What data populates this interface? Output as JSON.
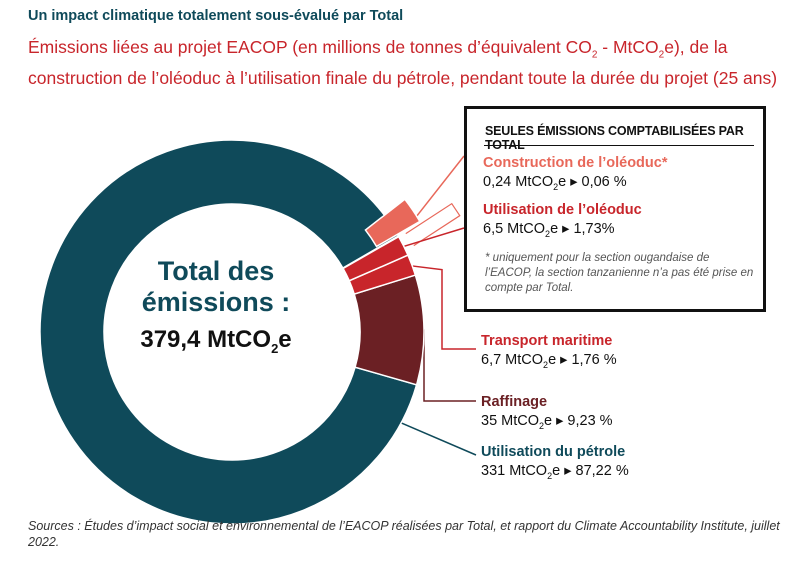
{
  "header": {
    "kicker": "Un impact climatique totalement sous-évalué par Total",
    "subtitle_part1": "Émissions liées au projet EACOP (en millions de tonnes d’équivalent CO",
    "subtitle_sub1": "2",
    "subtitle_part2": " - MtCO",
    "subtitle_sub2": "2",
    "subtitle_part3": "e), de la construction de l’oléoduc à l’utilisation finale du pétrole, pendant toute la durée du projet (25 ans)"
  },
  "center": {
    "title_line1": "Total des",
    "title_line2": "émissions :",
    "value_main": "379,4 MtCO",
    "value_sub": "2",
    "value_suffix": "e"
  },
  "box": {
    "title": "SEULES ÉMISSIONS COMPTABILISÉES PAR TOTAL",
    "note": "* uniquement pour la section ougandaise de l’EACOP, la section tanzanienne n’a pas été prise en compte par Total."
  },
  "labels": {
    "construction": {
      "name": "Construction de l’oléoduc*",
      "val_pre": "0,24 MtCO",
      "val_sub": "2",
      "val_post": "e ▸ 0,06 %"
    },
    "utilisation_oleoduc": {
      "name": "Utilisation de l’oléoduc",
      "val_pre": "6,5 MtCO",
      "val_sub": "2",
      "val_post": "e ▸ 1,73%"
    },
    "transport": {
      "name": "Transport maritime",
      "val_pre": "6,7 MtCO",
      "val_sub": "2",
      "val_post": "e ▸ 1,76 %"
    },
    "raffinage": {
      "name": "Raffinage",
      "val_pre": "35 MtCO",
      "val_sub": "2",
      "val_post": "e ▸ 9,23 %"
    },
    "utilisation_petrole": {
      "name": "Utilisation du pétrole",
      "val_pre": "331 MtCO",
      "val_sub": "2",
      "val_post": "e ▸ 87,22 %"
    }
  },
  "source": "Sources : Études d’impact social et environnemental de l’EACOP réalisées par Total, et rapport du Climate Accountability Institute, juillet 2022.",
  "colors": {
    "utilisation_petrole": "#0f4a5a",
    "raffinage": "#6b2024",
    "transport": "#c8252b",
    "utilisation_oleoduc": "#c8252b",
    "construction": "#e8685a",
    "title_red": "#c8252b",
    "title_blue": "#0f4a5a"
  },
  "chart_data": {
    "type": "pie",
    "unit": "MtCO2e",
    "total": 379.4,
    "series": [
      {
        "name": "Construction de l’oléoduc*",
        "value": 0.24,
        "percent": 0.06
      },
      {
        "name": "Utilisation de l’oléoduc",
        "value": 6.5,
        "percent": 1.73
      },
      {
        "name": "Transport maritime",
        "value": 6.7,
        "percent": 1.76
      },
      {
        "name": "Raffinage",
        "value": 35,
        "percent": 9.23
      },
      {
        "name": "Utilisation du pétrole",
        "value": 331,
        "percent": 87.22
      }
    ]
  }
}
